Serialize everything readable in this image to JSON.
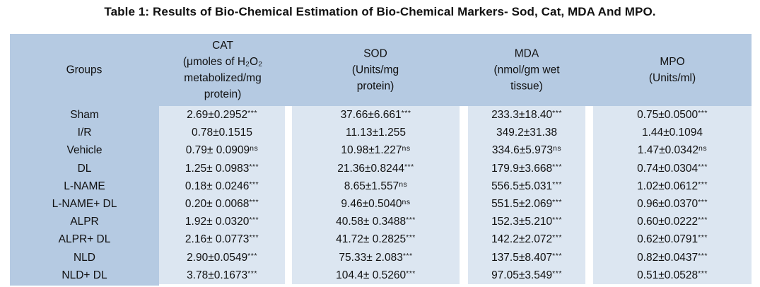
{
  "title": "Table 1: Results of Bio-Chemical Estimation of Bio-Chemical Markers- Sod, Cat, MDA And MPO.",
  "colors": {
    "header_bg": "#b5cae2",
    "data_cell_bg": "#dce6f1",
    "text": "#111111",
    "page_bg": "#ffffff"
  },
  "table": {
    "header": {
      "groups": "Groups",
      "cat": "CAT\n(μmoles of H₂O₂\nmetabolized/mg\nprotein)",
      "sod": "SOD\n(Units/mg\nprotein)",
      "mda": "MDA\n(nmol/gm wet\ntissue)",
      "mpo": "MPO\n(Units/ml)"
    },
    "rows": [
      {
        "group": "Sham",
        "cat": {
          "v": "2.69±0.2952",
          "sup": "***"
        },
        "sod": {
          "v": "37.66±6.661",
          "sup": "***"
        },
        "mda": {
          "v": "233.3±18.40",
          "sup": "***"
        },
        "mpo": {
          "v": "0.75±0.0500",
          "sup": "***"
        }
      },
      {
        "group": "I/R",
        "cat": {
          "v": "0.78±0.1515",
          "sup": ""
        },
        "sod": {
          "v": "11.13±1.255",
          "sup": ""
        },
        "mda": {
          "v": "349.2±31.38",
          "sup": ""
        },
        "mpo": {
          "v": "1.44±0.1094",
          "sup": ""
        }
      },
      {
        "group": "Vehicle",
        "cat": {
          "v": "0.79± 0.0909",
          "sup": "ns"
        },
        "sod": {
          "v": "10.98±1.227",
          "sup": "ns"
        },
        "mda": {
          "v": "334.6±5.973",
          "sup": "ns"
        },
        "mpo": {
          "v": "1.47±0.0342",
          "sup": "ns"
        }
      },
      {
        "group": "DL",
        "cat": {
          "v": "1.25± 0.0983",
          "sup": "***"
        },
        "sod": {
          "v": "21.36±0.8244",
          "sup": "***"
        },
        "mda": {
          "v": "179.9±3.668",
          "sup": "***"
        },
        "mpo": {
          "v": "0.74±0.0304",
          "sup": "***"
        }
      },
      {
        "group": "L-NAME",
        "cat": {
          "v": "0.18± 0.0246",
          "sup": "***"
        },
        "sod": {
          "v": "8.65±1.557",
          "sup": "ns"
        },
        "mda": {
          "v": "556.5±5.031",
          "sup": "***"
        },
        "mpo": {
          "v": "1.02±0.0612",
          "sup": "***"
        }
      },
      {
        "group": "L-NAME+ DL",
        "cat": {
          "v": "0.20± 0.0068",
          "sup": "***"
        },
        "sod": {
          "v": "9.46±0.5040",
          "sup": "ns"
        },
        "mda": {
          "v": "551.5±2.069",
          "sup": "***"
        },
        "mpo": {
          "v": "0.96±0.0370",
          "sup": "***"
        }
      },
      {
        "group": "ALPR",
        "cat": {
          "v": "1.92± 0.0320",
          "sup": "***"
        },
        "sod": {
          "v": "40.58± 0.3488",
          "sup": "***"
        },
        "mda": {
          "v": "152.3±5.210",
          "sup": "***"
        },
        "mpo": {
          "v": "0.60±0.0222",
          "sup": "***"
        }
      },
      {
        "group": "ALPR+ DL",
        "cat": {
          "v": "2.16± 0.0773",
          "sup": "***"
        },
        "sod": {
          "v": "41.72± 0.2825",
          "sup": "***"
        },
        "mda": {
          "v": "142.2±2.072",
          "sup": "***"
        },
        "mpo": {
          "v": "0.62±0.0791",
          "sup": "***"
        }
      },
      {
        "group": "NLD",
        "cat": {
          "v": "2.90±0.0549",
          "sup": "***"
        },
        "sod": {
          "v": "75.33± 2.083",
          "sup": "***"
        },
        "mda": {
          "v": "137.5±8.407",
          "sup": "***"
        },
        "mpo": {
          "v": "0.82±0.0437",
          "sup": "***"
        }
      },
      {
        "group": "NLD+ DL",
        "cat": {
          "v": "3.78±0.1673",
          "sup": "***"
        },
        "sod": {
          "v": "104.4± 0.5260",
          "sup": "***"
        },
        "mda": {
          "v": "97.05±3.549",
          "sup": "***"
        },
        "mpo": {
          "v": "0.51±0.0528",
          "sup": "***"
        }
      }
    ]
  }
}
